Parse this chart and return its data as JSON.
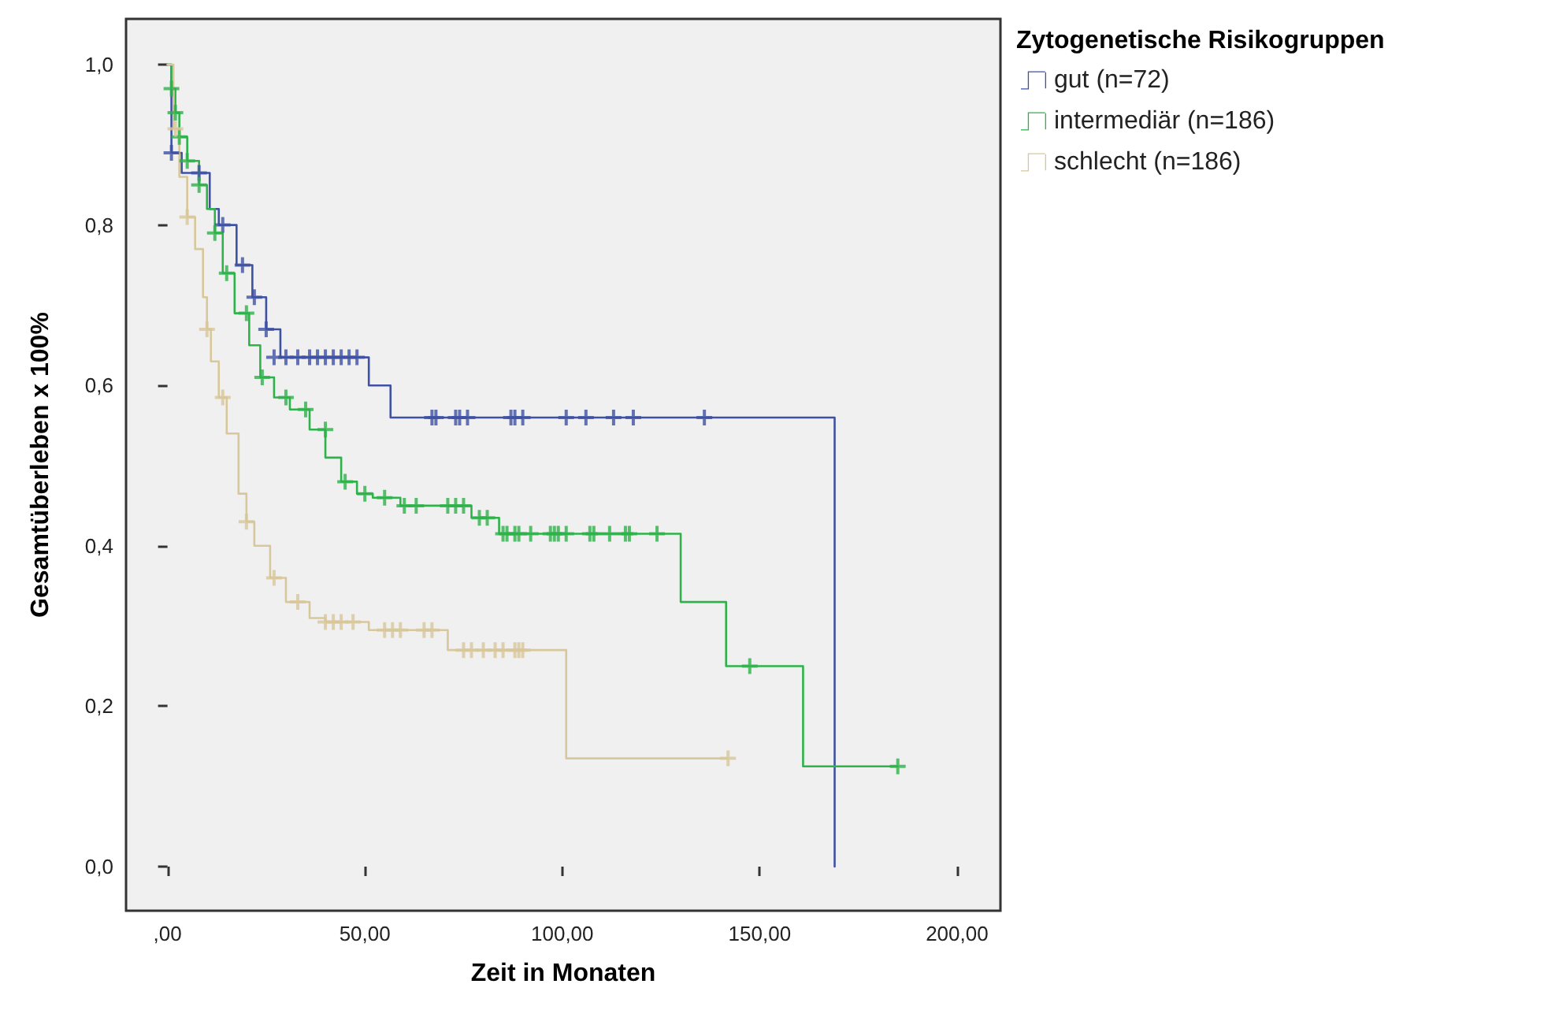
{
  "chart_data": {
    "type": "step",
    "xlabel": "Zeit in Monaten",
    "ylabel": "Gesamtüberleben x 100%",
    "legend_title": "Zytogenetische Risikogruppen",
    "legend": "top right",
    "grid": false,
    "xlim": [
      -10.5,
      211
    ],
    "ylim": [
      -0.055,
      1.057
    ],
    "xticks": [
      {
        "value": 0,
        "label": ",00"
      },
      {
        "value": 50,
        "label": "50,00"
      },
      {
        "value": 100,
        "label": "100,00"
      },
      {
        "value": 150,
        "label": "150,00"
      },
      {
        "value": 200,
        "label": "200,00"
      }
    ],
    "yticks": [
      {
        "value": 0,
        "label": "0,0"
      },
      {
        "value": 0.2,
        "label": "0,2"
      },
      {
        "value": 0.4,
        "label": "0,4"
      },
      {
        "value": 0.6,
        "label": "0,6"
      },
      {
        "value": 0.8,
        "label": "0,8"
      },
      {
        "value": 1,
        "label": "1,0"
      }
    ],
    "series": [
      {
        "name": "gut (n=72)",
        "color": "#3f51a3",
        "marker": "none",
        "x": [
          0,
          1,
          3.6,
          10.7,
          13,
          17.5,
          21.5,
          25,
          28.6,
          51,
          56.5,
          169
        ],
        "values": [
          1.0,
          0.89,
          0.865,
          0.82,
          0.8,
          0.75,
          0.71,
          0.67,
          0.635,
          0.6,
          0.56,
          0
        ]
      },
      {
        "name": "intermediär (n=186)",
        "color": "#2eb24a",
        "marker": "none",
        "x": [
          0,
          1,
          2,
          3,
          5,
          8,
          10,
          12,
          14,
          17,
          20.7,
          23.5,
          27,
          31,
          36,
          40,
          44,
          48,
          52,
          59,
          77,
          84,
          130,
          141.5,
          161,
          185
        ],
        "values": [
          1.0,
          0.97,
          0.94,
          0.91,
          0.88,
          0.85,
          0.82,
          0.79,
          0.74,
          0.69,
          0.65,
          0.61,
          0.585,
          0.57,
          0.545,
          0.51,
          0.48,
          0.465,
          0.46,
          0.45,
          0.435,
          0.415,
          0.33,
          0.25,
          0.125,
          0.125
        ]
      },
      {
        "name": "schlecht (n=186)",
        "color": "#d8c79a",
        "marker": "none",
        "x": [
          0,
          1.5,
          3,
          5,
          7,
          9,
          10,
          11,
          13,
          15,
          18,
          20,
          22,
          26,
          30,
          36,
          40,
          51,
          71,
          101,
          142
        ],
        "values": [
          1.0,
          0.92,
          0.86,
          0.81,
          0.77,
          0.71,
          0.67,
          0.63,
          0.585,
          0.54,
          0.465,
          0.43,
          0.4,
          0.36,
          0.33,
          0.31,
          0.305,
          0.295,
          0.27,
          0.135,
          0.135
        ]
      },
      {
        "type": "scatter",
        "color": "#3f51a3",
        "marker": "cross",
        "x": [
          1,
          8,
          14,
          19,
          22,
          25,
          27,
          30,
          33,
          36,
          38,
          40,
          42,
          44,
          46,
          48,
          67,
          68,
          73,
          74,
          76,
          87,
          88,
          90,
          101,
          106,
          113,
          118,
          136
        ],
        "values": [
          0.89,
          0.865,
          0.8,
          0.75,
          0.71,
          0.67,
          0.635,
          0.635,
          0.635,
          0.635,
          0.635,
          0.635,
          0.635,
          0.635,
          0.635,
          0.635,
          0.56,
          0.56,
          0.56,
          0.56,
          0.56,
          0.56,
          0.56,
          0.56,
          0.56,
          0.56,
          0.56,
          0.56,
          0.56
        ]
      },
      {
        "type": "scatter",
        "color": "#2eb24a",
        "marker": "cross",
        "x": [
          1,
          2,
          3,
          5,
          8,
          12,
          15,
          20,
          24,
          30,
          35,
          40,
          45,
          50,
          55,
          60,
          63,
          71,
          73,
          75,
          79,
          81,
          85,
          86,
          88,
          89,
          92,
          97,
          98,
          99,
          101,
          107,
          108,
          112,
          116,
          117,
          124,
          147.5,
          185
        ],
        "values": [
          0.97,
          0.94,
          0.91,
          0.88,
          0.85,
          0.79,
          0.74,
          0.69,
          0.61,
          0.585,
          0.57,
          0.545,
          0.48,
          0.465,
          0.46,
          0.45,
          0.45,
          0.45,
          0.45,
          0.45,
          0.435,
          0.435,
          0.415,
          0.415,
          0.415,
          0.415,
          0.415,
          0.415,
          0.415,
          0.415,
          0.415,
          0.415,
          0.415,
          0.415,
          0.415,
          0.415,
          0.415,
          0.25,
          0.125
        ]
      },
      {
        "type": "scatter",
        "color": "#d8c79a",
        "marker": "cross",
        "x": [
          2,
          5,
          10,
          14,
          20,
          27,
          33,
          40,
          42,
          44,
          47,
          55,
          57,
          59,
          65,
          67,
          75,
          77,
          80,
          83,
          85,
          88,
          89,
          90,
          142
        ],
        "values": [
          0.92,
          0.81,
          0.67,
          0.585,
          0.43,
          0.36,
          0.33,
          0.305,
          0.305,
          0.305,
          0.305,
          0.295,
          0.295,
          0.295,
          0.295,
          0.295,
          0.27,
          0.27,
          0.27,
          0.27,
          0.27,
          0.27,
          0.27,
          0.27,
          0.135
        ]
      }
    ]
  }
}
